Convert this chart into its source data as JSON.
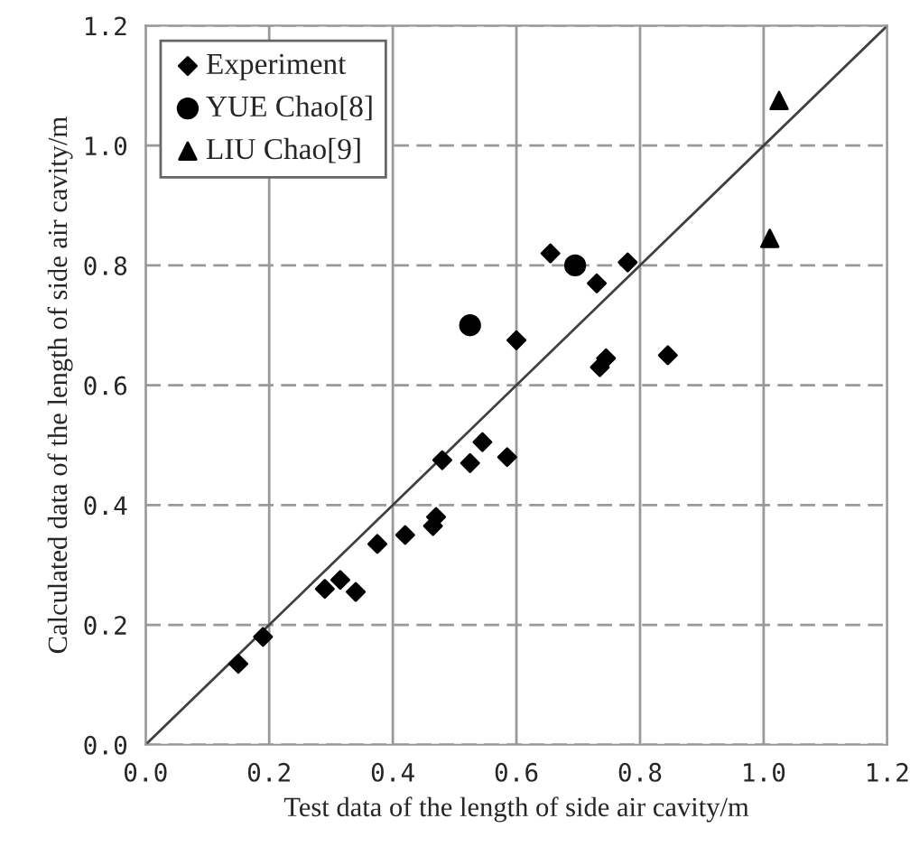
{
  "chart_data": {
    "type": "scatter",
    "xlabel": "Test data of the length of side air cavity/m",
    "ylabel": "Calculated data of the length of side air cavity/m",
    "xlim": [
      0,
      1.2
    ],
    "ylim": [
      0,
      1.2
    ],
    "xticks": [
      {
        "value": 0,
        "label": "0.0"
      },
      0.2,
      0.4,
      0.6,
      0.8,
      {
        "value": 1.0,
        "label": "1.0"
      },
      1.2
    ],
    "yticks": [
      {
        "value": 0,
        "label": "0.0"
      },
      0.2,
      0.4,
      0.6,
      0.8,
      {
        "value": 1.0,
        "label": "1.0"
      },
      1.2
    ],
    "grid": true,
    "legend": "top left",
    "series": [
      {
        "name": "Experiment",
        "color": "#000000",
        "marker": "diamond",
        "x": [
          0.15,
          0.19,
          0.29,
          0.315,
          0.34,
          0.375,
          0.42,
          0.465,
          0.47,
          0.48,
          0.525,
          0.545,
          0.585,
          0.6,
          0.655,
          0.73,
          0.735,
          0.745,
          0.78,
          0.845
        ],
        "values": [
          0.135,
          0.18,
          0.26,
          0.275,
          0.255,
          0.335,
          0.35,
          0.365,
          0.38,
          0.475,
          0.47,
          0.505,
          0.48,
          0.675,
          0.82,
          0.77,
          0.63,
          0.645,
          0.805,
          0.65
        ]
      },
      {
        "name": "YUE Chao[8]",
        "color": "#000000",
        "marker": "circle",
        "x": [
          0.525,
          0.695
        ],
        "values": [
          0.7,
          0.8
        ]
      },
      {
        "name": "LIU Chao[9]",
        "color": "#000000",
        "marker": "triangle",
        "x": [
          1.01,
          1.025
        ],
        "values": [
          0.845,
          1.075
        ]
      },
      {
        "type": "line",
        "color": "#404040",
        "x": [
          0,
          1.2
        ],
        "values": [
          0,
          1.2
        ]
      }
    ]
  }
}
